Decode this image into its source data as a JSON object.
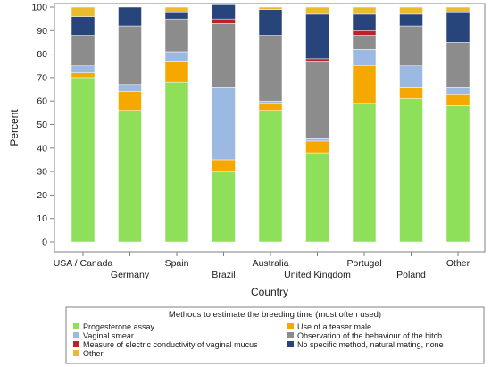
{
  "chart_data": {
    "type": "bar",
    "stacked": true,
    "categories": [
      "USA / Canada",
      "Germany",
      "Spain",
      "Brazil",
      "Australia",
      "United Kingdom",
      "Portugal",
      "Poland",
      "Other"
    ],
    "ylabel": "Percent",
    "xlabel": "Country",
    "ylim": [
      0,
      100
    ],
    "yticks": [
      0,
      10,
      20,
      30,
      40,
      50,
      60,
      70,
      80,
      90,
      100
    ],
    "grid": false,
    "legend_position": "bottom",
    "legend_title": "Methods to estimate the breeding time (most often used)",
    "series": [
      {
        "name": "Progesterone assay",
        "color": "#8ee05a",
        "values": [
          70,
          56,
          68,
          30,
          56,
          38,
          59,
          61,
          58
        ]
      },
      {
        "name": "Use of a teaser male",
        "color": "#f5a800",
        "values": [
          2,
          8,
          9,
          5,
          3,
          5,
          16,
          5,
          5
        ]
      },
      {
        "name": "Vaginal smear",
        "color": "#9cb9e3",
        "values": [
          3,
          3,
          4,
          31,
          1,
          1,
          7,
          9,
          3
        ]
      },
      {
        "name": "Observation of the behaviour of the bitch",
        "color": "#8c8c8c",
        "values": [
          13,
          25,
          14,
          27,
          28,
          33,
          6,
          17,
          19
        ]
      },
      {
        "name": "Measure of electric conductivity of vaginal mucus",
        "color": "#c0202a",
        "values": [
          0,
          0,
          0,
          2,
          0,
          1,
          2,
          0,
          0
        ]
      },
      {
        "name": "No specific method, natural mating, none",
        "color": "#27457a",
        "values": [
          8,
          8,
          3,
          6,
          11,
          19,
          7,
          5,
          13
        ]
      },
      {
        "name": "Other",
        "color": "#e8bc2c",
        "values": [
          4,
          0,
          2,
          0,
          1,
          3,
          3,
          3,
          2
        ]
      }
    ]
  }
}
